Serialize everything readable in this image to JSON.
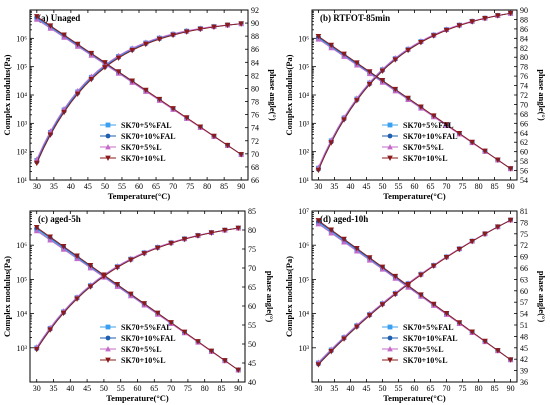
{
  "x_ticks": [
    30,
    35,
    40,
    45,
    50,
    55,
    60,
    65,
    70,
    75,
    80,
    85,
    90
  ],
  "legend": [
    "SK70+5%FAL",
    "SK70+10%FAL",
    "SK70+5%L",
    "SK70+10%L"
  ],
  "series_colors": [
    "#3aa0ef",
    "#1f5fb0",
    "#c46ac8",
    "#8b1a1a"
  ],
  "series_markers": [
    "square",
    "circle",
    "triangle-up",
    "triangle-down"
  ],
  "chart_data": [
    {
      "type": "line",
      "title": "(a) Unaged",
      "xlabel": "Temperature(°C)",
      "ylabel_left": "Complex modulus(Pa)",
      "ylabel_right": "phase angle(°)",
      "xlim": [
        28,
        92
      ],
      "ylim_left_log": [
        10,
        10000000
      ],
      "yscale_left": "log",
      "ylim_right": [
        66,
        92
      ],
      "left_tick_labels": [
        "10¹",
        "10²",
        "10³",
        "10⁴",
        "10⁵",
        "10⁶"
      ],
      "right_ticks": [
        66,
        68,
        70,
        72,
        74,
        76,
        78,
        80,
        82,
        84,
        86,
        88,
        90,
        92
      ],
      "x": [
        30,
        32,
        34,
        36,
        38,
        40,
        42,
        44,
        46,
        48,
        50,
        52,
        54,
        56,
        58,
        60,
        62,
        64,
        66,
        68,
        70,
        72,
        74,
        76,
        78,
        80,
        82,
        84,
        86,
        88,
        90
      ],
      "modulus_log10_start": 6.7,
      "modulus_log10_end": 1.9,
      "phase_start": 69,
      "phase_end": 89.9,
      "phase_shape": 0.055,
      "legend_position": "lower-left"
    },
    {
      "type": "line",
      "title": "(b) RTFOT-85min",
      "xlabel": "Temperature(°C)",
      "ylabel_left": "Complex modulus(Pa)",
      "ylabel_right": "phase angle(°)",
      "xlim": [
        28,
        92
      ],
      "ylim_left_log": [
        10,
        10000000
      ],
      "yscale_left": "log",
      "ylim_right": [
        54,
        90
      ],
      "left_tick_labels": [
        "10¹",
        "10²",
        "10³",
        "10⁴",
        "10⁵",
        "10⁶"
      ],
      "right_ticks": [
        54,
        56,
        58,
        60,
        62,
        64,
        66,
        68,
        70,
        72,
        74,
        76,
        78,
        80,
        82,
        84,
        86,
        88,
        90
      ],
      "x": [
        30,
        32,
        34,
        36,
        38,
        40,
        42,
        44,
        46,
        48,
        50,
        52,
        54,
        56,
        58,
        60,
        62,
        64,
        66,
        68,
        70,
        72,
        74,
        76,
        78,
        80,
        82,
        84,
        86,
        88,
        90
      ],
      "modulus_log10_start": 6.0,
      "modulus_log10_end": 1.4,
      "phase_start": 56.5,
      "phase_end": 89.3,
      "phase_shape": 0.045,
      "legend_position": "lower-left"
    },
    {
      "type": "line",
      "title": "(c) aged-5h",
      "xlabel": "Temperature(°C)",
      "ylabel_left": "Complex modulus(Pa)",
      "ylabel_right": "phase angle(°)",
      "xlim": [
        28,
        92
      ],
      "ylim_left_log": [
        100,
        10000000
      ],
      "yscale_left": "log",
      "ylim_right": [
        40,
        85
      ],
      "left_tick_labels": [
        "10³",
        "10⁴",
        "10⁵",
        "10⁶"
      ],
      "right_ticks": [
        40,
        45,
        50,
        55,
        60,
        65,
        70,
        75,
        80,
        85
      ],
      "x": [
        30,
        32,
        34,
        36,
        38,
        40,
        42,
        44,
        46,
        48,
        50,
        52,
        54,
        56,
        58,
        60,
        62,
        64,
        66,
        68,
        70,
        72,
        74,
        76,
        78,
        80,
        82,
        84,
        86,
        88,
        90
      ],
      "modulus_log10_start": 6.45,
      "modulus_log10_end": 2.35,
      "phase_start": 49,
      "phase_end": 80.5,
      "phase_shape": 0.04,
      "legend_position": "lower-left"
    },
    {
      "type": "line",
      "title": "(d) aged-10h",
      "xlabel": "Temperature(°C)",
      "ylabel_left": "Complex modulus(Pa)",
      "ylabel_right": "phase angle(°)",
      "xlim": [
        28,
        92
      ],
      "ylim_left_log": [
        100,
        10000000
      ],
      "yscale_left": "log",
      "ylim_right": [
        36,
        81
      ],
      "left_tick_labels": [
        "10³",
        "10⁴",
        "10⁵",
        "10⁶",
        "10⁷"
      ],
      "right_ticks": [
        36,
        39,
        42,
        45,
        48,
        51,
        54,
        57,
        60,
        63,
        66,
        69,
        72,
        75,
        78,
        81
      ],
      "x": [
        30,
        32,
        34,
        36,
        38,
        40,
        42,
        44,
        46,
        48,
        50,
        52,
        54,
        56,
        58,
        60,
        62,
        64,
        66,
        68,
        70,
        72,
        74,
        76,
        78,
        80,
        82,
        84,
        86,
        88,
        90
      ],
      "modulus_log10_start": 6.65,
      "modulus_log10_end": 2.65,
      "phase_start": 41,
      "phase_end": 78.6,
      "phase_shape": 0.012,
      "legend_position": "lower-left"
    }
  ]
}
